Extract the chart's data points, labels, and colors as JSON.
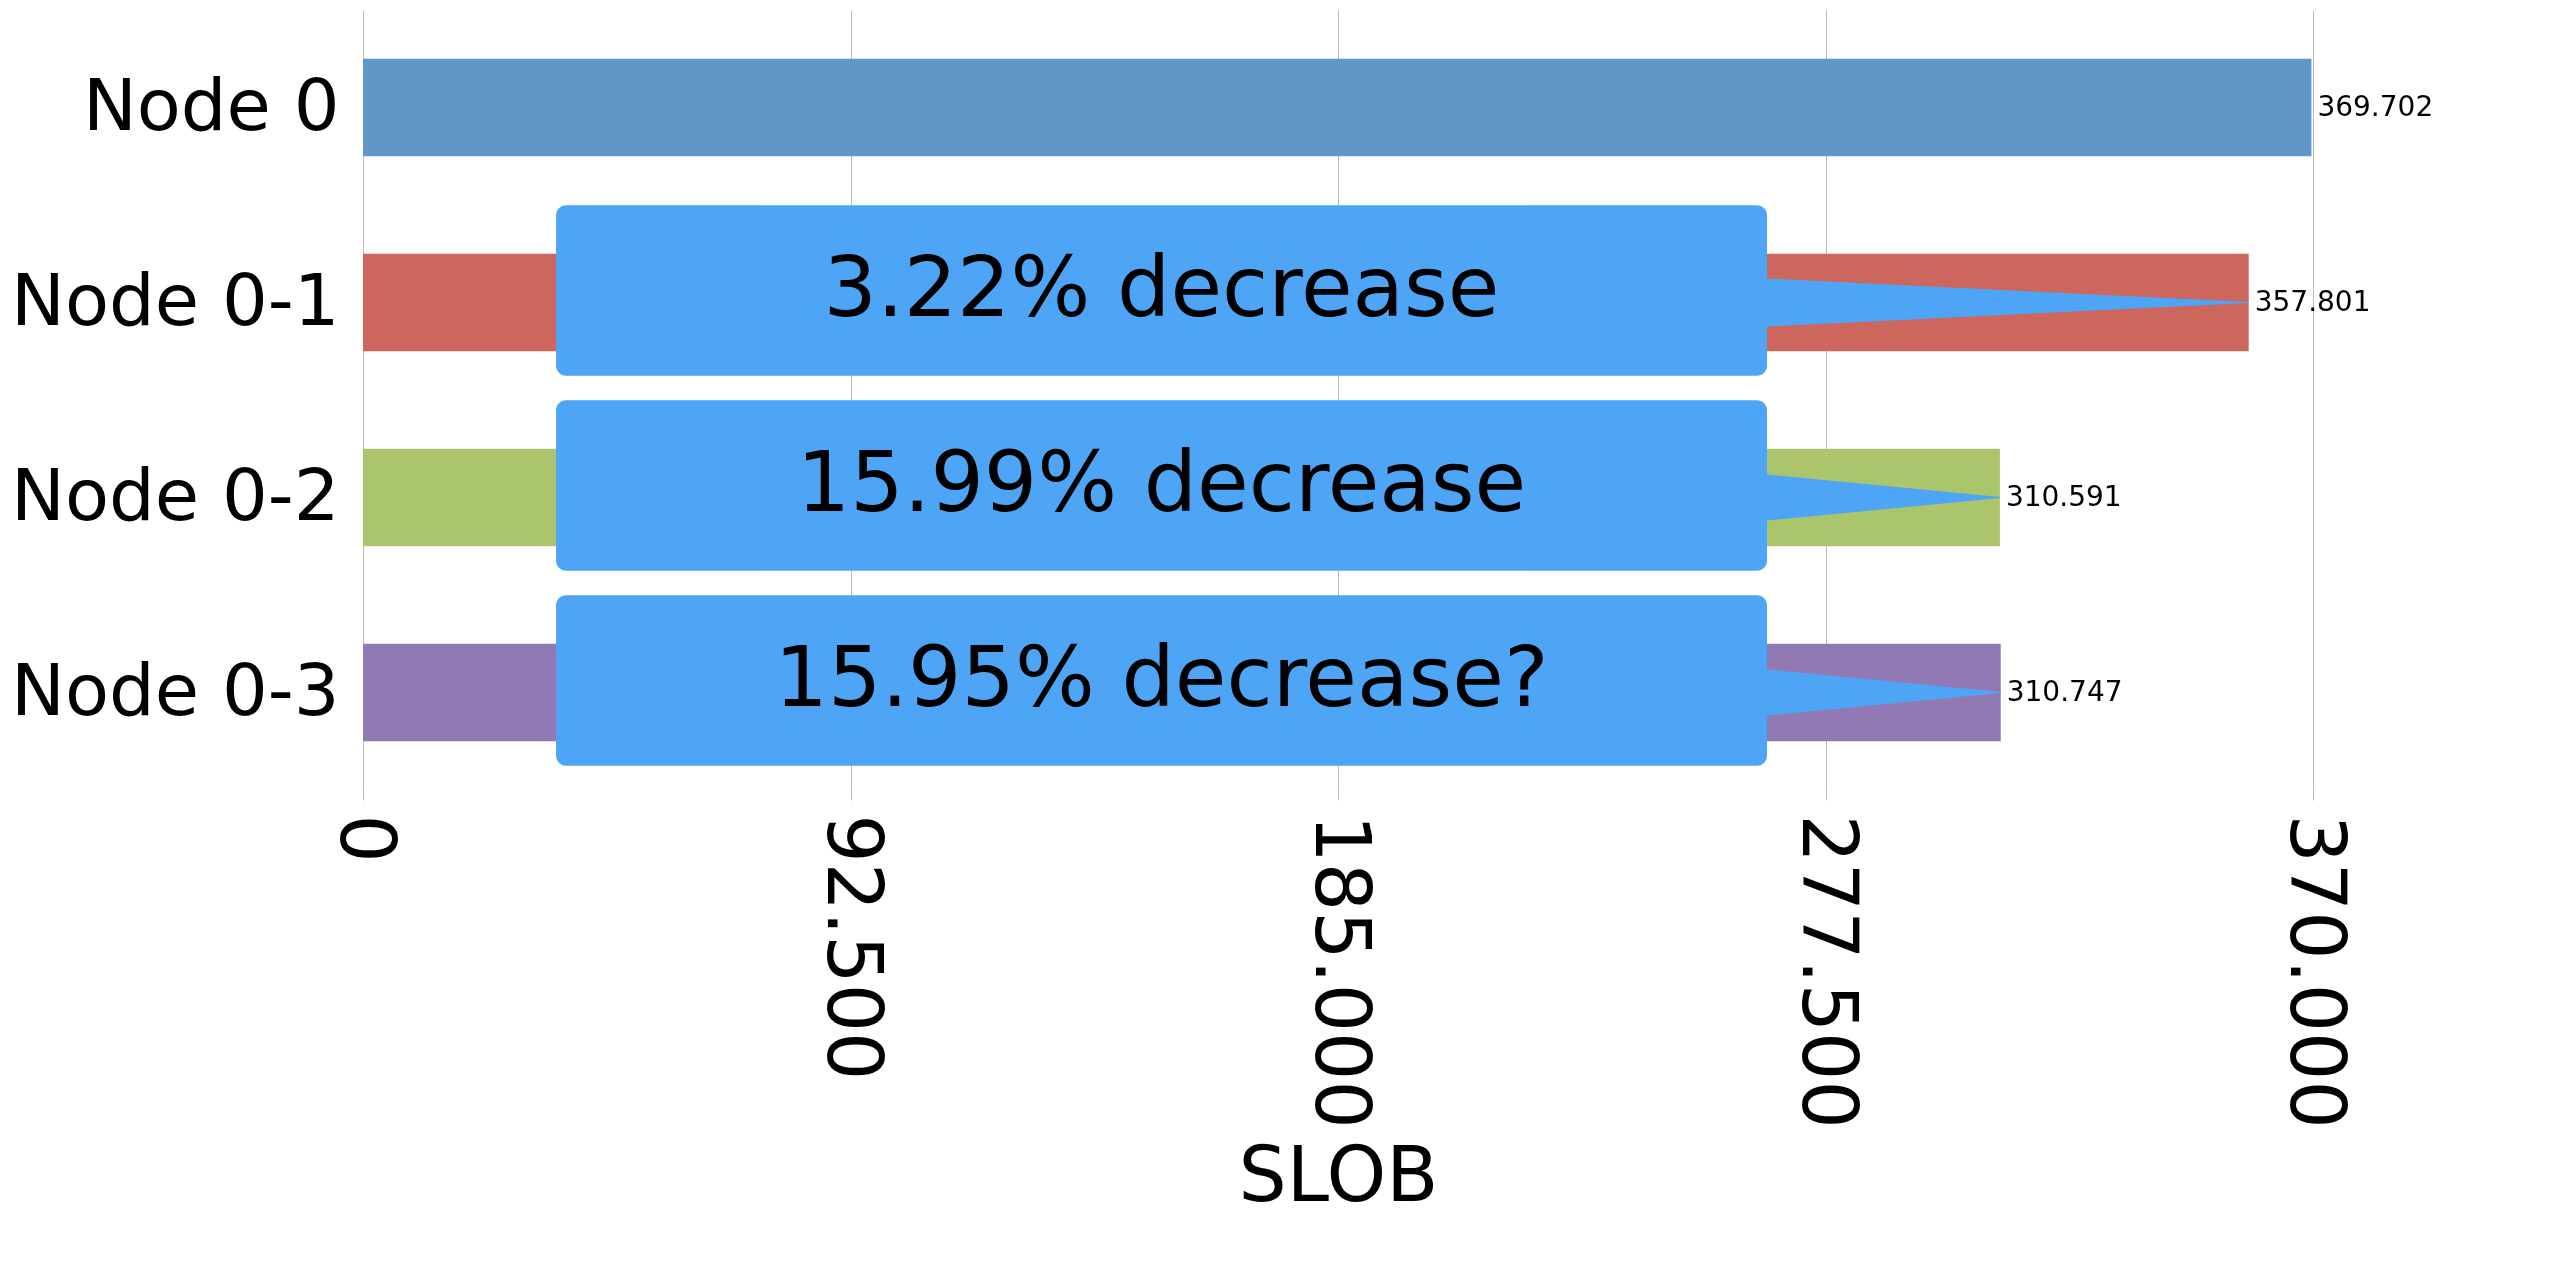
{
  "chart_data": {
    "type": "bar",
    "orientation": "horizontal",
    "xlabel": "SLOB",
    "categories": [
      "Node 0",
      "Node 0-1",
      "Node 0-2",
      "Node 0-3"
    ],
    "values": [
      369.702,
      357.801,
      310.591,
      310.747
    ],
    "colors": [
      "#6096c8",
      "#cd665c",
      "#abc56c",
      "#9179b3"
    ],
    "xlim": [
      0,
      370
    ],
    "xticks": [
      0,
      {
        "value": 92.5,
        "label": "92.500"
      },
      {
        "value": 185,
        "label": "185.000"
      },
      {
        "value": 277.5,
        "label": "277.500"
      },
      {
        "value": 370,
        "label": "370.000"
      }
    ],
    "grid": "x",
    "data_labels": true,
    "annotations": [
      "3.22% decrease",
      "15.99% decrease",
      "15.95% decrease?"
    ]
  }
}
